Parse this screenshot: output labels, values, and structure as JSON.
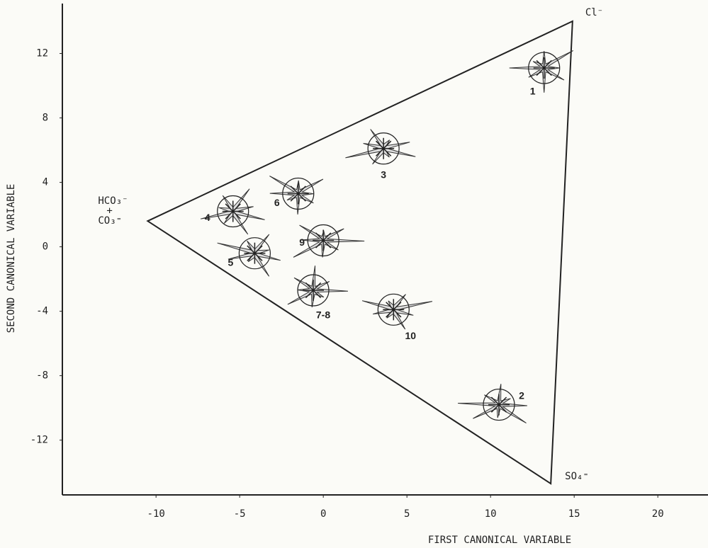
{
  "chart_data": {
    "type": "scatter",
    "x_label": "FIRST CANONICAL VARIABLE",
    "y_label": "SECOND CANONICAL VARIABLE",
    "xlim": [
      -15.6,
      23
    ],
    "ylim": [
      -15.4,
      15.1
    ],
    "xticks": [
      -10,
      -5,
      0,
      5,
      10,
      15,
      20
    ],
    "yticks": [
      -12,
      -8,
      -4,
      0,
      4,
      8,
      12
    ],
    "series": [
      {
        "labels": [
          "1",
          "3",
          "6",
          "4",
          "9",
          "5",
          "7-8",
          "10",
          "2"
        ],
        "x": [
          13.2,
          3.6,
          -1.5,
          -5.4,
          0,
          -4.1,
          -0.6,
          4.2,
          10.5
        ],
        "y": [
          11.1,
          6.1,
          3.3,
          2.2,
          0.4,
          -0.4,
          -2.7,
          -3.9,
          -9.8
        ]
      }
    ],
    "triangle": {
      "x": [
        -10.5,
        14.9,
        13.6
      ],
      "y": [
        1.6,
        14.0,
        -14.7
      ],
      "labels": [
        [
          "HCO₃⁻",
          "+",
          "CO₃⁼"
        ],
        [
          "Cl⁻"
        ],
        [
          "SO₄⁼"
        ]
      ]
    }
  }
}
